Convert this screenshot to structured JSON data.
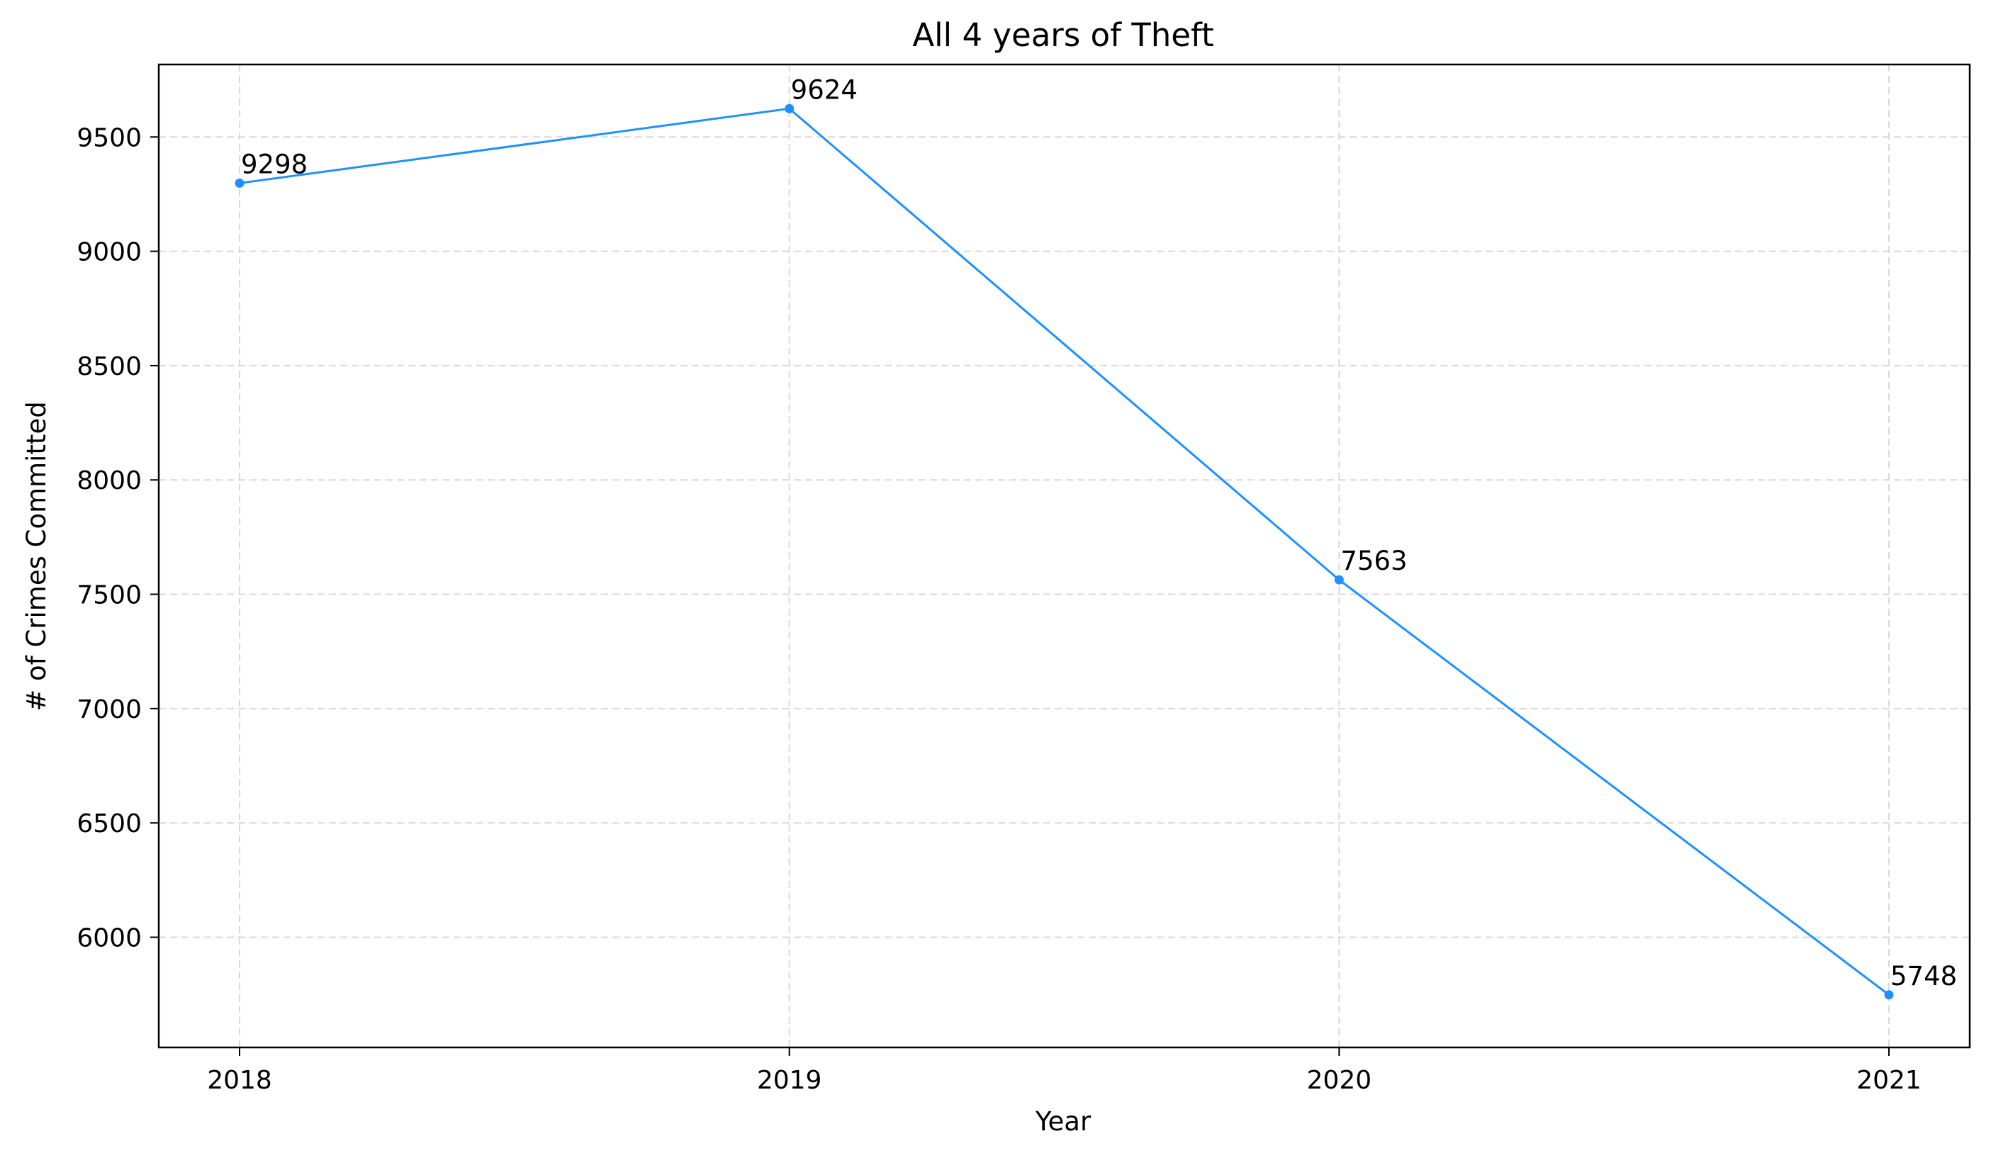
{
  "chart_data": {
    "type": "line",
    "title": "All 4 years of Theft",
    "xlabel": "Year",
    "ylabel": "# of Crimes Committed",
    "categories": [
      "2018",
      "2019",
      "2020",
      "2021"
    ],
    "series": [
      {
        "values": [
          9298,
          9624,
          7563,
          5748
        ],
        "color": "#1e90ff",
        "marker": "circle"
      }
    ],
    "data_labels": [
      "9298",
      "9624",
      "7563",
      "5748"
    ],
    "ylim": [
      5518,
      9817
    ],
    "yticks": [
      6000,
      6500,
      7000,
      7500,
      8000,
      8500,
      9000,
      9500
    ],
    "ytick_labels": [
      "6000",
      "6500",
      "7000",
      "7500",
      "8000",
      "8500",
      "9000",
      "9500"
    ],
    "grid": true,
    "legend": "none"
  }
}
